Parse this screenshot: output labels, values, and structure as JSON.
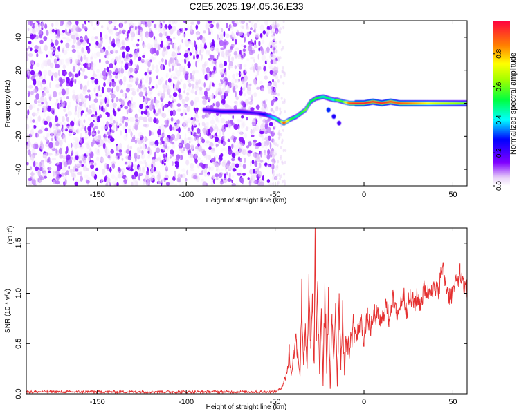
{
  "figure_title": "C2E5.2025.194.05.36.E33",
  "colorbar": {
    "label": "Normalized spectral amplitude",
    "ticks": [
      0.0,
      0.2,
      0.4,
      0.6,
      0.8
    ],
    "tick_labels": [
      "0.0",
      "0.2",
      "0.4",
      "0.6",
      "0.8"
    ]
  },
  "chart_data": [
    {
      "type": "heatmap",
      "title": "",
      "xlabel": "Height of straight line (km)",
      "ylabel": "Frequency (Hz)",
      "xlim": [
        -190,
        58
      ],
      "ylim": [
        -50,
        50
      ],
      "xticks": [
        -150,
        -100,
        -50,
        0,
        50
      ],
      "yticks": [
        -40,
        -20,
        0,
        20,
        40
      ],
      "colorscale": "rainbow, normalized 0-1",
      "noise_region": {
        "x_range": [
          -190,
          -49
        ],
        "f_range": [
          -50,
          50
        ],
        "amplitude_range": [
          0.0,
          0.25
        ]
      },
      "ridge": {
        "x": [
          -90,
          -80,
          -70,
          -60,
          -55,
          -50,
          -47,
          -45,
          -42,
          -38,
          -33,
          -30,
          -27,
          -23,
          -20,
          -17,
          -15,
          -12,
          -8,
          -5,
          0,
          5,
          10,
          15,
          20,
          30,
          40,
          50,
          58
        ],
        "f": [
          -4,
          -5,
          -5,
          -6,
          -7,
          -9,
          -11,
          -12,
          -10,
          -8,
          -4,
          1,
          3,
          4,
          3,
          2,
          2,
          1,
          0,
          0,
          0,
          1,
          0,
          1,
          0,
          0,
          0,
          0,
          0
        ],
        "amplitude": [
          0.2,
          0.25,
          0.25,
          0.2,
          0.3,
          0.4,
          0.55,
          0.95,
          0.6,
          0.45,
          0.6,
          0.5,
          0.55,
          0.45,
          0.5,
          0.4,
          0.6,
          0.55,
          0.9,
          0.95,
          0.95,
          0.95,
          0.95,
          0.9,
          0.9,
          0.8,
          0.7,
          0.65,
          0.6
        ]
      },
      "side_branch": {
        "x": [
          -20,
          -17,
          -14
        ],
        "f": [
          -4,
          -8,
          -12
        ],
        "amplitude": [
          0.3,
          0.25,
          0.2
        ]
      }
    },
    {
      "type": "line",
      "title": "",
      "xlabel": "Height of straight line (km)",
      "ylabel": "SNR (10 * v/v)",
      "multiplier_label": "(x10^4)",
      "xlim": [
        -190,
        58
      ],
      "ylim": [
        0,
        1.65
      ],
      "xticks": [
        -150,
        -100,
        -50,
        0,
        50
      ],
      "yticks": [
        0.0,
        0.5,
        1.0,
        1.5
      ],
      "ytick_labels": [
        "0.0",
        "0.5",
        "1.0",
        "1.5"
      ],
      "series": [
        {
          "color": "#e53030",
          "x": [
            -190,
            -160,
            -130,
            -100,
            -70,
            -50,
            -47,
            -45,
            -43,
            -42,
            -41,
            -40,
            -38,
            -36,
            -35,
            -34,
            -33,
            -32,
            -31,
            -30,
            -29,
            -28,
            -27.5,
            -27,
            -26,
            -25,
            -24,
            -23,
            -22,
            -21,
            -20,
            -19,
            -18,
            -17,
            -16,
            -15,
            -14,
            -13,
            -12,
            -11,
            -10,
            -8,
            -6,
            -4,
            -2,
            0,
            2,
            4,
            6,
            8,
            10,
            12,
            14,
            16,
            18,
            20,
            22,
            24,
            26,
            28,
            30,
            32,
            34,
            36,
            38,
            40,
            42,
            44,
            45,
            46,
            48,
            50,
            52,
            54,
            56,
            58
          ],
          "values": [
            0.02,
            0.02,
            0.02,
            0.02,
            0.02,
            0.02,
            0.05,
            0.12,
            0.25,
            0.42,
            0.18,
            0.35,
            0.55,
            0.2,
            0.95,
            0.3,
            0.7,
            0.25,
            1.0,
            0.45,
            0.85,
            0.3,
            1.62,
            0.6,
            0.9,
            0.2,
            0.85,
            0.1,
            1.05,
            0.25,
            0.9,
            0.05,
            0.7,
            0.35,
            0.9,
            0.08,
            1.0,
            0.3,
            0.85,
            0.2,
            0.55,
            0.45,
            0.7,
            0.55,
            0.75,
            0.55,
            0.75,
            0.65,
            0.8,
            0.75,
            0.7,
            0.9,
            0.75,
            0.95,
            0.8,
            0.85,
            1.0,
            0.85,
            0.95,
            0.9,
            0.95,
            0.9,
            1.05,
            1.0,
            1.08,
            1.0,
            1.05,
            1.25,
            1.18,
            1.1,
            0.98,
            1.0,
            1.12,
            1.2,
            1.05,
            1.05
          ]
        }
      ]
    }
  ]
}
